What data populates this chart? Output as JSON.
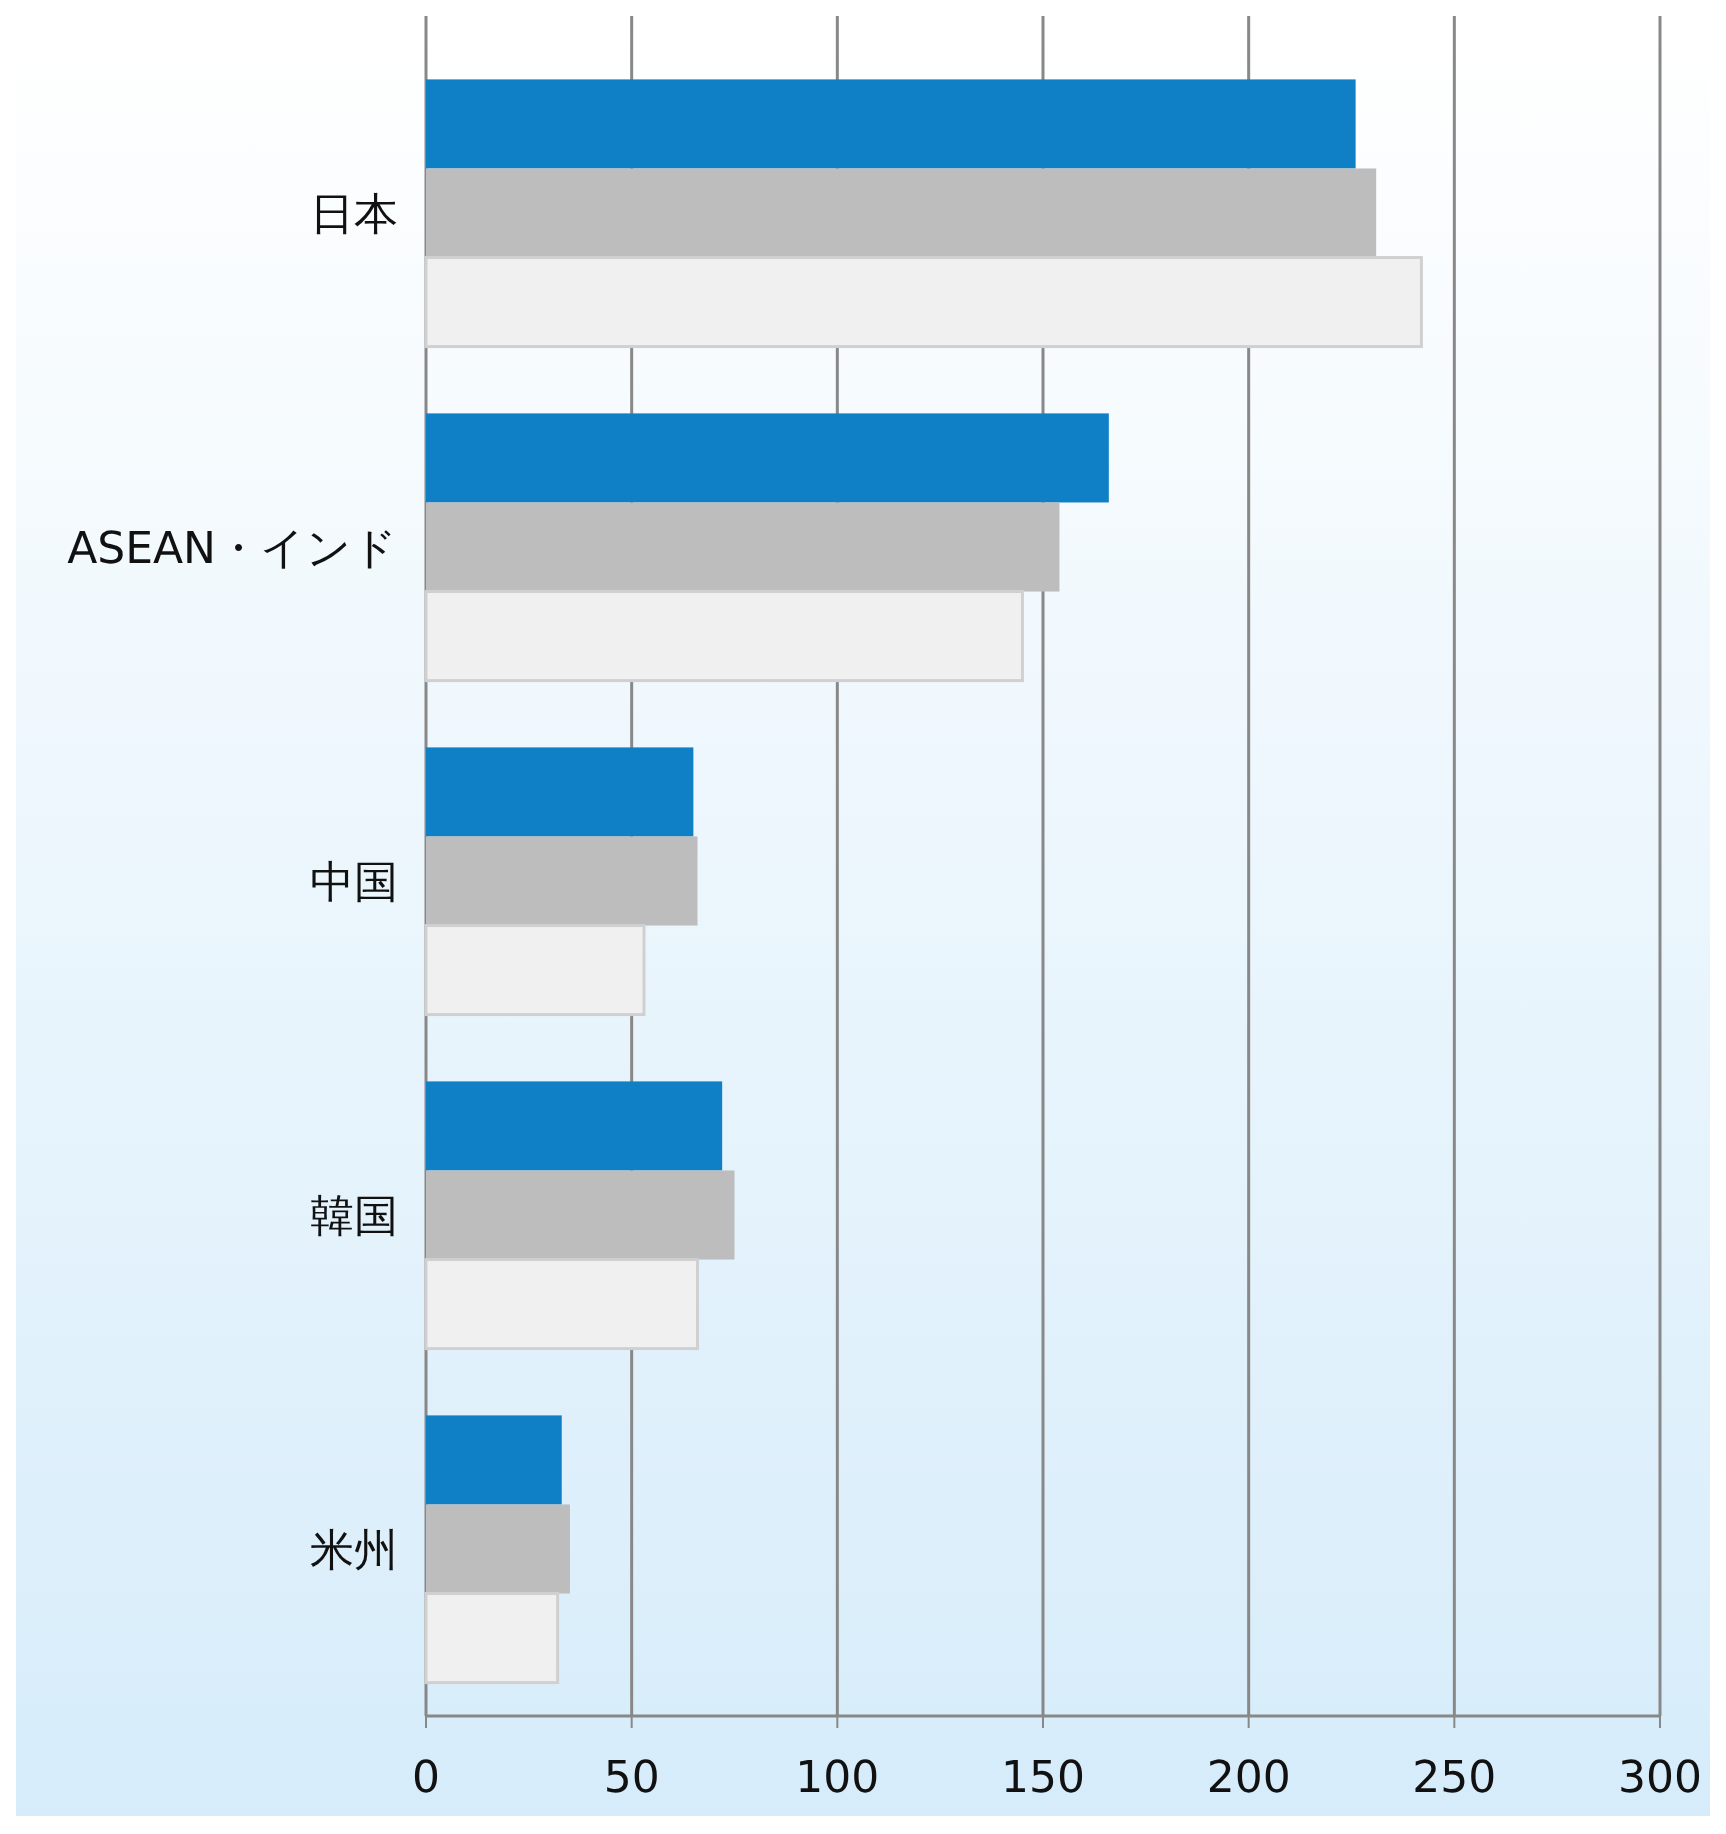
{
  "chart_data": {
    "type": "bar",
    "orientation": "horizontal",
    "categories": [
      "日本",
      "ASEAN・インド",
      "中国",
      "韓国",
      "米州"
    ],
    "series": [
      {
        "color": "#0f7fc6",
        "values": [
          226,
          166,
          65,
          72,
          33
        ]
      },
      {
        "color": "#bdbdbd",
        "values": [
          231,
          154,
          66,
          75,
          35
        ]
      },
      {
        "color": "#f0f0f0",
        "values": [
          242,
          145,
          53,
          66,
          32
        ]
      }
    ],
    "xlim": [
      0,
      300
    ],
    "xticks": [
      0,
      50,
      100,
      150,
      200,
      250,
      300
    ],
    "grid": "x"
  }
}
